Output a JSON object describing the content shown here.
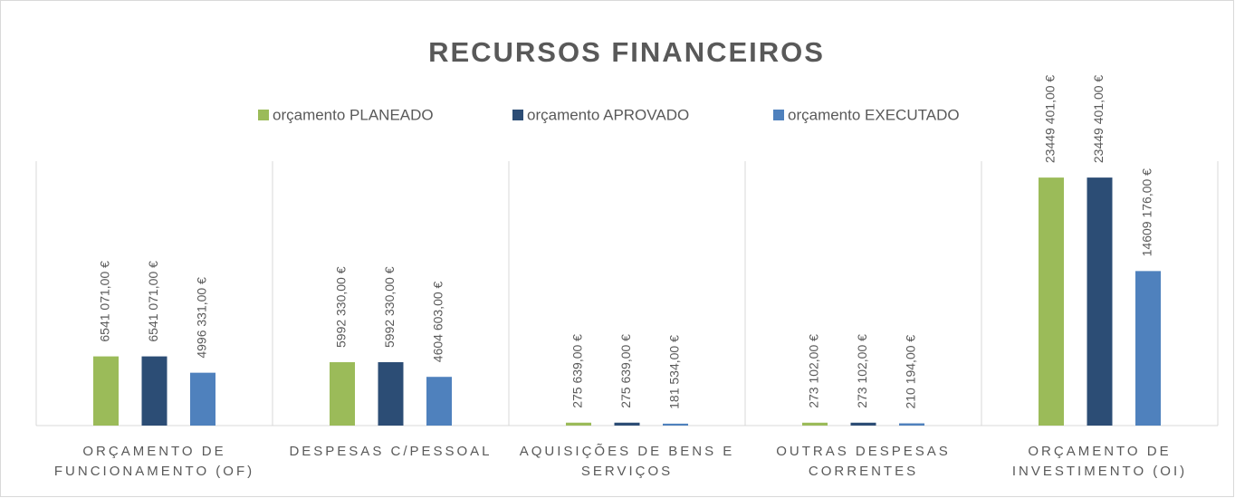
{
  "chart_data": {
    "type": "bar",
    "title": "RECURSOS FINANCEIROS",
    "categories": [
      "ORÇAMENTO DE FUNCIONAMENTO (OF)",
      "DESPESAS C/PESSOAL",
      "AQUISIÇÕES DE BENS E SERVIÇOS",
      "OUTRAS DESPESAS CORRENTES",
      "ORÇAMENTO DE INVESTIMENTO (OI)"
    ],
    "series": [
      {
        "name": "orçamento PLANEADO",
        "color": "#9bbb59",
        "values": [
          6541071,
          5992330,
          275639,
          273102,
          23449401
        ],
        "value_labels": [
          "6541 071,00 €",
          "5992 330,00 €",
          "275 639,00 €",
          "273 102,00 €",
          "23449 401,00 €"
        ]
      },
      {
        "name": "orçamento APROVADO",
        "color": "#2c4d75",
        "values": [
          6541071,
          5992330,
          275639,
          273102,
          23449401
        ],
        "value_labels": [
          "6541 071,00 €",
          "5992 330,00 €",
          "275 639,00 €",
          "273 102,00 €",
          "23449 401,00 €"
        ]
      },
      {
        "name": "orçamento EXECUTADO",
        "color": "#4f81bd",
        "values": [
          4996331,
          4604603,
          181534,
          210194,
          14609176
        ],
        "value_labels": [
          "4996 331,00 €",
          "4604 603,00 €",
          "181 534,00 €",
          "210 194,00 €",
          "14609 176,00 €"
        ]
      }
    ],
    "ylim": [
      0,
      25000000
    ],
    "legend": "top"
  }
}
